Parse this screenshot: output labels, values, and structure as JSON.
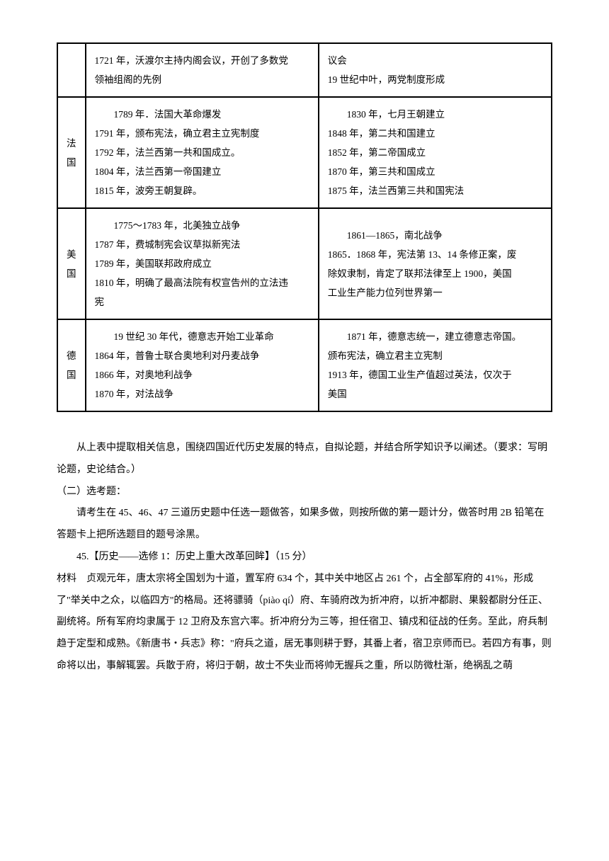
{
  "table": {
    "row0": {
      "left": {
        "line1": "1721 年，沃渡尔主持内阁会议，开创了多数党",
        "line2": "领袖组阁的先例"
      },
      "right": {
        "line1": "议会",
        "line2": "19 世纪中叶，两党制度形成"
      }
    },
    "france": {
      "label": "法国",
      "left": {
        "line1": "1789 年．法国大革命爆发",
        "line2": "1791 年，颁布宪法，确立君主立宪制度",
        "line3": "1792 年，法兰西第一共和国成立。",
        "line4": "1804 年，法兰西第一帝国建立",
        "line5": "1815 年，波旁王朝复辟。"
      },
      "right": {
        "line1": "1830 年，七月王朝建立",
        "line2": "1848 年，第二共和国建立",
        "line3": "1852 年，第二帝国成立",
        "line4": "1870 年，第三共和国成立",
        "line5": "1875 年，法兰西第三共和国宪法"
      }
    },
    "usa": {
      "label": "美国",
      "left": {
        "line1": "1775～1783 年，北美独立战争",
        "line2": "1787 年，费城制宪会议草拟新宪法",
        "line3": "1789 年，美国联邦政府成立",
        "line4": "1810 年，明确了最高法院有权宣告州的立法违",
        "line5": "宪"
      },
      "right": {
        "line1": "1861—1865，南北战争",
        "line2": "1865．1868 年，宪法第 13、14 条修正案，废",
        "line3": "除奴隶制，肯定了联邦法律至上 1900，美国",
        "line4": "工业生产能力位列世界第一"
      }
    },
    "germany": {
      "label": "德国",
      "left": {
        "line1": "19 世纪 30 年代，德意志开始工业革命",
        "line2": "1864 年，普鲁士联合奥地利对丹麦战争",
        "line3": "1866 年，对奥地利战争",
        "line4": "1870 年，对法战争"
      },
      "right": {
        "line1": "1871 年，德意志统一，建立德意志帝国。",
        "line2": "颁布宪法，确立君主立宪制",
        "line3": "1913 年，德国工业生产值超过英法，仅次于",
        "line4": "美国"
      }
    }
  },
  "text": {
    "p1": "从上表中提取相关信息，围绕四国近代历史发展的特点，自拟论题，并结合所学知识予以阐述。（要求：写明论题，史论结合。）",
    "p2": "（二）选考题：",
    "p3": "请考生在 45、46、47 三道历史题中任选一题做答，如果多做，则按所做的第一题计分，做答时用 2B 铅笔在答题卡上把所选题目的题号涂黑。",
    "p4": "45.【历史——选修 1：历史上重大改革回眸】（15 分）",
    "p5_label": "材料",
    "p5": "贞观元年，唐太宗将全国划为十道，置军府 634 个，其中关中地区占 261 个，占全部军府的 41%，形成了\"举关中之众，以临四方\"的格局。还将骠骑（piào qí）府、车骑府改为折冲府，以折冲都尉、果毅都尉分任正、副统将。所有军府均隶属于 12 卫府及东宫六率。折冲府分为三等，担任宿卫、镇戍和征战的任务。至此，府兵制趋于定型和成熟。《新唐书・兵志》称：\"府兵之道，居无事则耕于野，其番上者，宿卫京师而已。若四方有事，则命将以出，事解辄罢。兵散于府，将归于朝，故士不失业而将帅无握兵之重，所以防微杜渐，绝祸乱之萌"
  }
}
